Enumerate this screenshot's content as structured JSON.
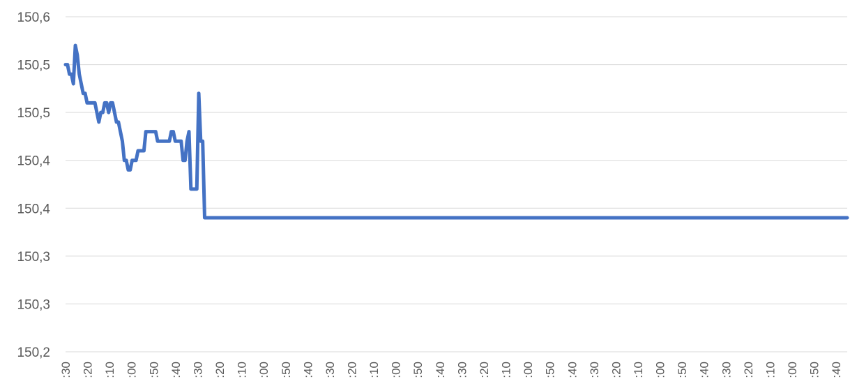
{
  "chart_data": {
    "type": "line",
    "title": "",
    "xlabel": "",
    "ylabel": "",
    "grid": {
      "y": true,
      "x": false
    },
    "legend": "none",
    "ylim": [
      150.2,
      150.6
    ],
    "y_ticks": [
      {
        "value": 150.2,
        "label": "150,2"
      },
      {
        "value": 150.25,
        "label": "150,3"
      },
      {
        "value": 150.3,
        "label": "150,3"
      },
      {
        "value": 150.35,
        "label": "150,4"
      },
      {
        "value": 150.4,
        "label": "150,4"
      },
      {
        "value": 150.45,
        "label": "150,5"
      },
      {
        "value": 150.5,
        "label": "150,5"
      },
      {
        "value": 150.55,
        "label": "150,6"
      }
    ],
    "x_tick_labels": [
      ":30",
      ":20",
      ":10",
      ":00",
      ":50",
      ":40",
      ":30",
      ":20",
      ":10",
      ":00",
      ":50",
      ":40",
      ":30",
      ":20",
      ":10",
      ":00",
      ":50",
      ":40",
      ":30",
      ":20",
      ":10",
      ":00",
      ":50",
      ":40",
      ":30",
      ":20",
      ":10",
      ":00",
      ":50",
      ":40",
      ":30",
      ":20",
      ":10",
      ":00",
      ":50",
      ":40",
      ":30",
      ":20",
      ":10",
      ":00",
      ":50",
      ":40",
      ":30",
      ":20",
      ":10",
      ":00",
      ":50",
      ":40",
      ":30",
      ":20",
      ":10",
      ":00",
      ":50",
      ":40",
      ":30",
      ":20",
      ":10",
      ":00",
      ":50",
      ":40",
      ":30",
      ":20",
      ":10",
      ":00",
      ":50",
      ":40",
      ":30",
      ":20",
      ":10",
      ":00",
      ":50",
      ":40"
    ],
    "x_label_every": 2,
    "series": [
      {
        "name": "",
        "color": "#4472c4",
        "values": [
          150.5,
          150.5,
          150.49,
          150.49,
          150.48,
          150.52,
          150.51,
          150.49,
          150.48,
          150.47,
          150.47,
          150.46,
          150.46,
          150.46,
          150.46,
          150.46,
          150.45,
          150.44,
          150.45,
          150.45,
          150.46,
          150.46,
          150.45,
          150.46,
          150.46,
          150.45,
          150.44,
          150.44,
          150.43,
          150.42,
          150.4,
          150.4,
          150.39,
          150.39,
          150.4,
          150.4,
          150.4,
          150.41,
          150.41,
          150.41,
          150.41,
          150.43,
          150.43,
          150.43,
          150.43,
          150.43,
          150.43,
          150.42,
          150.42,
          150.42,
          150.42,
          150.42,
          150.42,
          150.42,
          150.43,
          150.43,
          150.42,
          150.42,
          150.42,
          150.42,
          150.4,
          150.4,
          150.42,
          150.43,
          150.37,
          150.37,
          150.37,
          150.37,
          150.47,
          150.42,
          150.42,
          150.34,
          150.34,
          150.34,
          150.34,
          150.34,
          150.34,
          150.34,
          150.34,
          150.34,
          150.34,
          150.34,
          150.34,
          150.34,
          150.34,
          150.34,
          150.34,
          150.34,
          150.34,
          150.34,
          150.34,
          150.34,
          150.34,
          150.34,
          150.34,
          150.34,
          150.34,
          150.34,
          150.34,
          150.34,
          150.34,
          150.34,
          150.34,
          150.34,
          150.34,
          150.34,
          150.34,
          150.34,
          150.34,
          150.34,
          150.34,
          150.34,
          150.34,
          150.34,
          150.34,
          150.34,
          150.34,
          150.34,
          150.34,
          150.34,
          150.34,
          150.34,
          150.34,
          150.34,
          150.34,
          150.34,
          150.34,
          150.34,
          150.34,
          150.34,
          150.34,
          150.34,
          150.34,
          150.34,
          150.34,
          150.34,
          150.34,
          150.34,
          150.34,
          150.34,
          150.34,
          150.34,
          150.34,
          150.34,
          150.34,
          150.34,
          150.34,
          150.34,
          150.34,
          150.34,
          150.34,
          150.34,
          150.34,
          150.34,
          150.34,
          150.34,
          150.34,
          150.34,
          150.34,
          150.34,
          150.34,
          150.34,
          150.34,
          150.34,
          150.34,
          150.34,
          150.34,
          150.34,
          150.34,
          150.34,
          150.34,
          150.34,
          150.34,
          150.34,
          150.34,
          150.34,
          150.34,
          150.34,
          150.34,
          150.34,
          150.34,
          150.34,
          150.34,
          150.34,
          150.34,
          150.34,
          150.34,
          150.34,
          150.34,
          150.34,
          150.34,
          150.34,
          150.34,
          150.34,
          150.34,
          150.34,
          150.34,
          150.34,
          150.34,
          150.34,
          150.34,
          150.34,
          150.34,
          150.34,
          150.34,
          150.34,
          150.34,
          150.34,
          150.34,
          150.34,
          150.34,
          150.34,
          150.34,
          150.34,
          150.34,
          150.34,
          150.34,
          150.34,
          150.34,
          150.34,
          150.34,
          150.34,
          150.34,
          150.34,
          150.34,
          150.34,
          150.34,
          150.34,
          150.34,
          150.34,
          150.34,
          150.34,
          150.34,
          150.34,
          150.34,
          150.34,
          150.34,
          150.34,
          150.34,
          150.34,
          150.34,
          150.34,
          150.34,
          150.34,
          150.34,
          150.34,
          150.34,
          150.34,
          150.34,
          150.34,
          150.34,
          150.34,
          150.34,
          150.34,
          150.34,
          150.34,
          150.34,
          150.34,
          150.34,
          150.34,
          150.34,
          150.34,
          150.34,
          150.34,
          150.34,
          150.34,
          150.34,
          150.34,
          150.34,
          150.34,
          150.34,
          150.34,
          150.34,
          150.34,
          150.34,
          150.34,
          150.34,
          150.34,
          150.34,
          150.34,
          150.34,
          150.34,
          150.34,
          150.34,
          150.34,
          150.34,
          150.34,
          150.34,
          150.34,
          150.34,
          150.34,
          150.34,
          150.34,
          150.34,
          150.34,
          150.34,
          150.34,
          150.34,
          150.34,
          150.34,
          150.34,
          150.34,
          150.34,
          150.34,
          150.34,
          150.34,
          150.34,
          150.34,
          150.34,
          150.34,
          150.34,
          150.34,
          150.34,
          150.34,
          150.34,
          150.34,
          150.34,
          150.34,
          150.34,
          150.34,
          150.34,
          150.34,
          150.34,
          150.34,
          150.34,
          150.34,
          150.34,
          150.34,
          150.34,
          150.34,
          150.34,
          150.34,
          150.34,
          150.34,
          150.34,
          150.34,
          150.34,
          150.34,
          150.34,
          150.34,
          150.34,
          150.34,
          150.34,
          150.34,
          150.34,
          150.34,
          150.34,
          150.34,
          150.34,
          150.34,
          150.34,
          150.34,
          150.34,
          150.34,
          150.34,
          150.34,
          150.34,
          150.34,
          150.34,
          150.34,
          150.34,
          150.34,
          150.34,
          150.34,
          150.34,
          150.34,
          150.34,
          150.34,
          150.34,
          150.34,
          150.34,
          150.34,
          150.34,
          150.34,
          150.34,
          150.34,
          150.34,
          150.34,
          150.34,
          150.34,
          150.34,
          150.34,
          150.34,
          150.34,
          150.34,
          150.34,
          150.34,
          150.34,
          150.34,
          150.34,
          150.34,
          150.34,
          150.34,
          150.34,
          150.34,
          150.34,
          150.34,
          150.34,
          150.34,
          150.34
        ]
      }
    ]
  }
}
